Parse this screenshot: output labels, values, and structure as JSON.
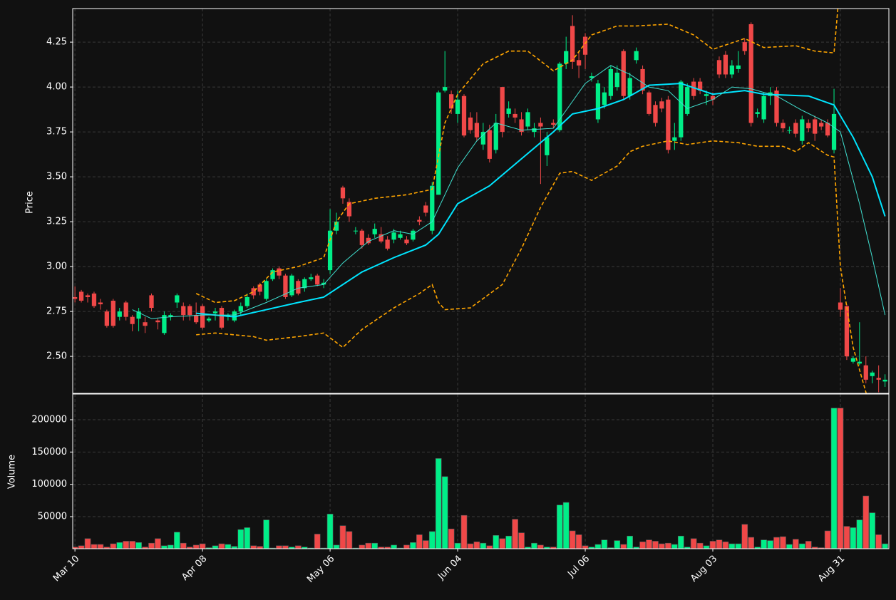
{
  "chart_data": [
    {
      "type": "candlestick",
      "ylabel": "Price",
      "up_color": "#00ee88",
      "down_color": "#f04848",
      "xlim": [
        -0.35,
        127.6
      ],
      "ylim": [
        2.294,
        4.437
      ],
      "yticks": [
        {
          "value": 2.5,
          "label": "2.50"
        },
        {
          "value": 2.75,
          "label": "2.75"
        },
        {
          "value": 3,
          "label": "3.00"
        },
        {
          "value": 3.25,
          "label": "3.25"
        },
        {
          "value": 3.5,
          "label": "3.50"
        },
        {
          "value": 3.75,
          "label": "3.75"
        },
        {
          "value": 4,
          "label": "4.00"
        },
        {
          "value": 4.25,
          "label": "4.25"
        }
      ],
      "xticks": [
        0,
        20,
        40,
        60,
        80,
        100,
        120
      ],
      "grid": true,
      "open": [
        2.83,
        2.86,
        2.84,
        2.85,
        2.8,
        2.75,
        2.81,
        2.72,
        2.8,
        2.72,
        2.71,
        2.69,
        2.84,
        2.7,
        2.63,
        2.72,
        2.8,
        2.78,
        2.78,
        2.73,
        2.78,
        2.7,
        2.74,
        2.77,
        2.72,
        2.7,
        2.75,
        2.78,
        2.88,
        2.9,
        2.82,
        2.93,
        2.99,
        2.95,
        2.84,
        2.92,
        2.88,
        2.93,
        2.95,
        2.9,
        2.98,
        3.2,
        3.44,
        3.36,
        3.2,
        3.2,
        3.16,
        3.18,
        3.18,
        3.15,
        3.15,
        3.16,
        3.15,
        3.15,
        3.26,
        3.34,
        3.2,
        3.4,
        3.98,
        3.96,
        3.85,
        3.95,
        3.83,
        3.8,
        3.68,
        3.76,
        3.65,
        4,
        3.85,
        3.85,
        3.82,
        3.78,
        3.75,
        3.8,
        3.62,
        3.8,
        3.76,
        4.13,
        4.34,
        4.15,
        4.28,
        4.05,
        3.82,
        3.9,
        3.95,
        4,
        4.2,
        3.95,
        4.15,
        4.1,
        3.97,
        3.9,
        3.92,
        3.93,
        3.7,
        3.72,
        3.85,
        4.03,
        4.03,
        3.95,
        3.95,
        4.15,
        4.18,
        4.07,
        4.1,
        4.25,
        4.35,
        3.85,
        3.82,
        3.95,
        3.98,
        3.8,
        3.76,
        3.8,
        3.7,
        3.8,
        3.82,
        3.8,
        3.8,
        3.65,
        2.8,
        2.78,
        2.47,
        2.46,
        2.45,
        2.39,
        2.38,
        2.36
      ],
      "high": [
        2.89,
        2.87,
        2.85,
        2.86,
        2.82,
        2.76,
        2.82,
        2.77,
        2.81,
        2.73,
        2.77,
        2.72,
        2.85,
        2.71,
        2.75,
        2.74,
        2.85,
        2.8,
        2.79,
        2.8,
        2.79,
        2.72,
        2.77,
        2.78,
        2.74,
        2.76,
        2.8,
        2.85,
        2.89,
        2.91,
        2.93,
        2.99,
        3,
        2.96,
        2.96,
        2.93,
        2.94,
        2.96,
        2.96,
        2.93,
        3.32,
        3.3,
        3.45,
        3.38,
        3.22,
        3.21,
        3.18,
        3.24,
        3.22,
        3.17,
        3.21,
        3.2,
        3.17,
        3.21,
        3.28,
        3.36,
        3.47,
        3.98,
        4.2,
        3.98,
        3.98,
        3.96,
        3.86,
        3.86,
        3.8,
        3.79,
        3.85,
        4,
        3.92,
        3.88,
        3.86,
        3.88,
        3.8,
        3.83,
        3.75,
        3.82,
        4.14,
        4.28,
        4.4,
        4.2,
        4.3,
        4.08,
        4.04,
        4,
        4.12,
        4.12,
        4.21,
        4.08,
        4.22,
        4.12,
        3.98,
        3.92,
        3.94,
        3.95,
        3.8,
        4.04,
        4.02,
        4.05,
        4.05,
        3.98,
        3.97,
        4.17,
        4.2,
        4.15,
        4.2,
        4.27,
        4.36,
        3.88,
        3.97,
        4,
        4,
        3.82,
        3.78,
        3.82,
        3.84,
        3.82,
        3.84,
        3.82,
        3.82,
        3.99,
        2.88,
        2.79,
        2.5,
        2.69,
        2.5,
        2.42,
        2.45,
        2.4
      ],
      "low": [
        2.8,
        2.8,
        2.8,
        2.77,
        2.76,
        2.66,
        2.66,
        2.7,
        2.7,
        2.64,
        2.64,
        2.63,
        2.75,
        2.65,
        2.62,
        2.7,
        2.77,
        2.7,
        2.7,
        2.68,
        2.65,
        2.69,
        2.7,
        2.65,
        2.7,
        2.69,
        2.73,
        2.77,
        2.82,
        2.84,
        2.81,
        2.92,
        2.93,
        2.82,
        2.83,
        2.84,
        2.86,
        2.92,
        2.89,
        2.88,
        2.96,
        3.18,
        3.35,
        3.25,
        3.18,
        3.1,
        3.12,
        3.16,
        3.13,
        3.09,
        3.13,
        3.15,
        3.12,
        3.14,
        3.23,
        3.28,
        3.18,
        3.4,
        3.97,
        3.85,
        3.8,
        3.72,
        3.74,
        3.7,
        3.65,
        3.58,
        3.63,
        3.72,
        3.83,
        3.8,
        3.73,
        3.76,
        3.72,
        3.46,
        3.56,
        3.77,
        3.75,
        4.1,
        4.1,
        4.05,
        4.1,
        4.03,
        3.8,
        3.88,
        3.93,
        3.98,
        3.93,
        3.93,
        4.13,
        3.96,
        3.84,
        3.78,
        3.86,
        3.63,
        3.65,
        3.7,
        3.84,
        3.93,
        3.96,
        3.9,
        3.9,
        4.05,
        4.05,
        4.05,
        4.08,
        4.18,
        3.78,
        3.83,
        3.8,
        3.9,
        3.78,
        3.75,
        3.74,
        3.72,
        3.68,
        3.75,
        3.7,
        3.76,
        3.72,
        3.63,
        2.72,
        2.48,
        2.46,
        2.45,
        2.35,
        2.35,
        2.3,
        2.33
      ],
      "close": [
        2.82,
        2.81,
        2.83,
        2.78,
        2.79,
        2.67,
        2.67,
        2.75,
        2.72,
        2.68,
        2.75,
        2.67,
        2.77,
        2.69,
        2.73,
        2.73,
        2.84,
        2.73,
        2.73,
        2.69,
        2.66,
        2.71,
        2.75,
        2.66,
        2.73,
        2.75,
        2.78,
        2.83,
        2.84,
        2.86,
        2.92,
        2.98,
        2.95,
        2.83,
        2.95,
        2.85,
        2.93,
        2.94,
        2.9,
        2.91,
        3.2,
        3.25,
        3.38,
        3.28,
        3.2,
        3.12,
        3.13,
        3.21,
        3.14,
        3.1,
        3.19,
        3.18,
        3.13,
        3.2,
        3.25,
        3.3,
        3.45,
        3.97,
        4,
        3.88,
        3.93,
        3.73,
        3.76,
        3.72,
        3.75,
        3.6,
        3.8,
        3.75,
        3.88,
        3.83,
        3.75,
        3.86,
        3.77,
        3.78,
        3.72,
        3.79,
        4.13,
        4.2,
        4.14,
        4.12,
        4.18,
        4.06,
        4.02,
        3.97,
        4.1,
        4.08,
        3.95,
        4.05,
        4.2,
        3.98,
        3.85,
        3.8,
        3.88,
        3.65,
        3.72,
        4.03,
        4,
        3.95,
        3.98,
        3.96,
        3.93,
        4.07,
        4.07,
        4.12,
        4.12,
        4.2,
        3.8,
        3.86,
        3.95,
        3.97,
        3.8,
        3.77,
        3.76,
        3.74,
        3.82,
        3.77,
        3.74,
        3.78,
        3.73,
        3.85,
        2.76,
        2.5,
        2.49,
        2.47,
        2.37,
        2.41,
        2.37,
        2.37
      ],
      "overlays": [
        {
          "color": "#00e5ff",
          "width": 2,
          "dash": false,
          "x": [
            19,
            25,
            30,
            35,
            39,
            45,
            50,
            55,
            57,
            60,
            65,
            70,
            75,
            78,
            82,
            86,
            90,
            95,
            100,
            105,
            108,
            115,
            119,
            122,
            125,
            127
          ],
          "values": [
            2.74,
            2.72,
            2.76,
            2.8,
            2.83,
            2.97,
            3.05,
            3.12,
            3.18,
            3.35,
            3.45,
            3.6,
            3.75,
            3.85,
            3.88,
            3.93,
            4.01,
            4.02,
            3.96,
            3.98,
            3.96,
            3.95,
            3.9,
            3.72,
            3.5,
            3.28
          ]
        },
        {
          "color": "#40e0d0",
          "width": 1,
          "dash": false,
          "x": [
            9,
            12,
            15,
            20,
            25,
            30,
            35,
            39,
            42,
            46,
            50,
            53,
            56,
            58,
            60,
            63,
            66,
            70,
            75,
            77,
            80,
            84,
            87,
            90,
            93,
            96,
            100,
            103,
            106,
            110,
            114,
            118,
            120,
            123,
            125,
            127
          ],
          "values": [
            2.76,
            2.71,
            2.72,
            2.73,
            2.73,
            2.8,
            2.88,
            2.9,
            3.02,
            3.14,
            3.2,
            3.18,
            3.25,
            3.4,
            3.55,
            3.7,
            3.8,
            3.76,
            3.77,
            3.87,
            4.02,
            4.12,
            4.07,
            4,
            3.98,
            3.88,
            3.93,
            4,
            3.99,
            3.95,
            3.87,
            3.8,
            3.75,
            3.35,
            3.05,
            2.73
          ]
        },
        {
          "color": "#ffa500",
          "width": 1.6,
          "dash": true,
          "x": [
            19,
            22,
            25,
            28,
            31,
            35,
            39,
            41,
            43,
            47,
            52,
            56,
            58,
            60,
            64,
            68,
            71,
            75,
            78,
            81,
            85,
            88,
            93,
            97,
            100,
            105,
            108,
            113,
            116,
            119,
            120
          ],
          "values": [
            2.85,
            2.8,
            2.81,
            2.86,
            2.97,
            3,
            3.05,
            3.25,
            3.35,
            3.38,
            3.4,
            3.43,
            3.8,
            3.96,
            4.13,
            4.2,
            4.2,
            4.09,
            4.15,
            4.29,
            4.34,
            4.34,
            4.35,
            4.29,
            4.21,
            4.27,
            4.22,
            4.23,
            4.2,
            4.19,
            4.6
          ]
        },
        {
          "color": "#ffa500",
          "width": 1.6,
          "dash": true,
          "x": [
            19,
            22,
            28,
            30,
            35,
            39,
            42,
            45,
            50,
            54,
            56,
            57,
            58,
            62,
            67,
            70,
            73,
            76,
            78,
            81,
            85,
            87,
            89,
            93,
            96,
            100,
            104,
            107,
            111,
            113,
            115,
            118,
            119,
            120,
            122,
            124,
            125
          ],
          "values": [
            2.62,
            2.63,
            2.61,
            2.59,
            2.61,
            2.63,
            2.55,
            2.65,
            2.77,
            2.85,
            2.9,
            2.8,
            2.76,
            2.77,
            2.9,
            3.1,
            3.33,
            3.52,
            3.53,
            3.48,
            3.56,
            3.64,
            3.67,
            3.7,
            3.68,
            3.7,
            3.69,
            3.67,
            3.67,
            3.64,
            3.69,
            3.62,
            3.61,
            3,
            2.55,
            2.3,
            2.2
          ]
        }
      ]
    },
    {
      "type": "bar",
      "ylabel": "Volume",
      "up_color": "#00ee88",
      "down_color": "#f04848",
      "xlim": [
        -0.35,
        127.6
      ],
      "ylim": [
        400,
        239700
      ],
      "yticks": [
        50000,
        100000,
        150000,
        200000
      ],
      "grid": true,
      "xticks": [
        {
          "value": 0,
          "label": "Mar 10"
        },
        {
          "value": 20,
          "label": "Apr 08"
        },
        {
          "value": 40,
          "label": "May 06"
        },
        {
          "value": 60,
          "label": "Jun 04"
        },
        {
          "value": 80,
          "label": "Jul 06"
        },
        {
          "value": 100,
          "label": "Aug 03"
        },
        {
          "value": 120,
          "label": "Aug 31"
        }
      ],
      "values": [
        3000,
        5000,
        16000,
        7000,
        7000,
        3000,
        8000,
        10000,
        12000,
        12000,
        10000,
        3000,
        9000,
        16000,
        5000,
        6000,
        26000,
        9000,
        3000,
        6000,
        8000,
        2000,
        5000,
        8000,
        7000,
        4000,
        30000,
        33000,
        5000,
        4000,
        45000,
        1500,
        5000,
        5000,
        3000,
        5000,
        3000,
        1500,
        23000,
        1500,
        54000,
        6000,
        36000,
        27000,
        1500,
        6000,
        9000,
        9000,
        3000,
        3000,
        6000,
        1500,
        6000,
        10000,
        22000,
        13000,
        27000,
        140000,
        112000,
        31000,
        9000,
        52000,
        8000,
        11000,
        9000,
        5000,
        21000,
        16000,
        20000,
        46000,
        25000,
        3000,
        9000,
        6000,
        3000,
        3000,
        68000,
        72000,
        28000,
        22000,
        5000,
        3000,
        7000,
        14000,
        2000,
        13000,
        7000,
        20000,
        3000,
        11000,
        14000,
        12000,
        8000,
        9000,
        7000,
        20000,
        3000,
        16000,
        9000,
        5000,
        12000,
        14000,
        11000,
        8000,
        8000,
        38000,
        18000,
        3000,
        14000,
        13000,
        18000,
        19000,
        7000,
        15000,
        8000,
        12000,
        3000,
        2000,
        28000,
        218000,
        218000,
        35000,
        33000,
        45000,
        82000,
        56000,
        22000,
        8000
      ]
    }
  ]
}
